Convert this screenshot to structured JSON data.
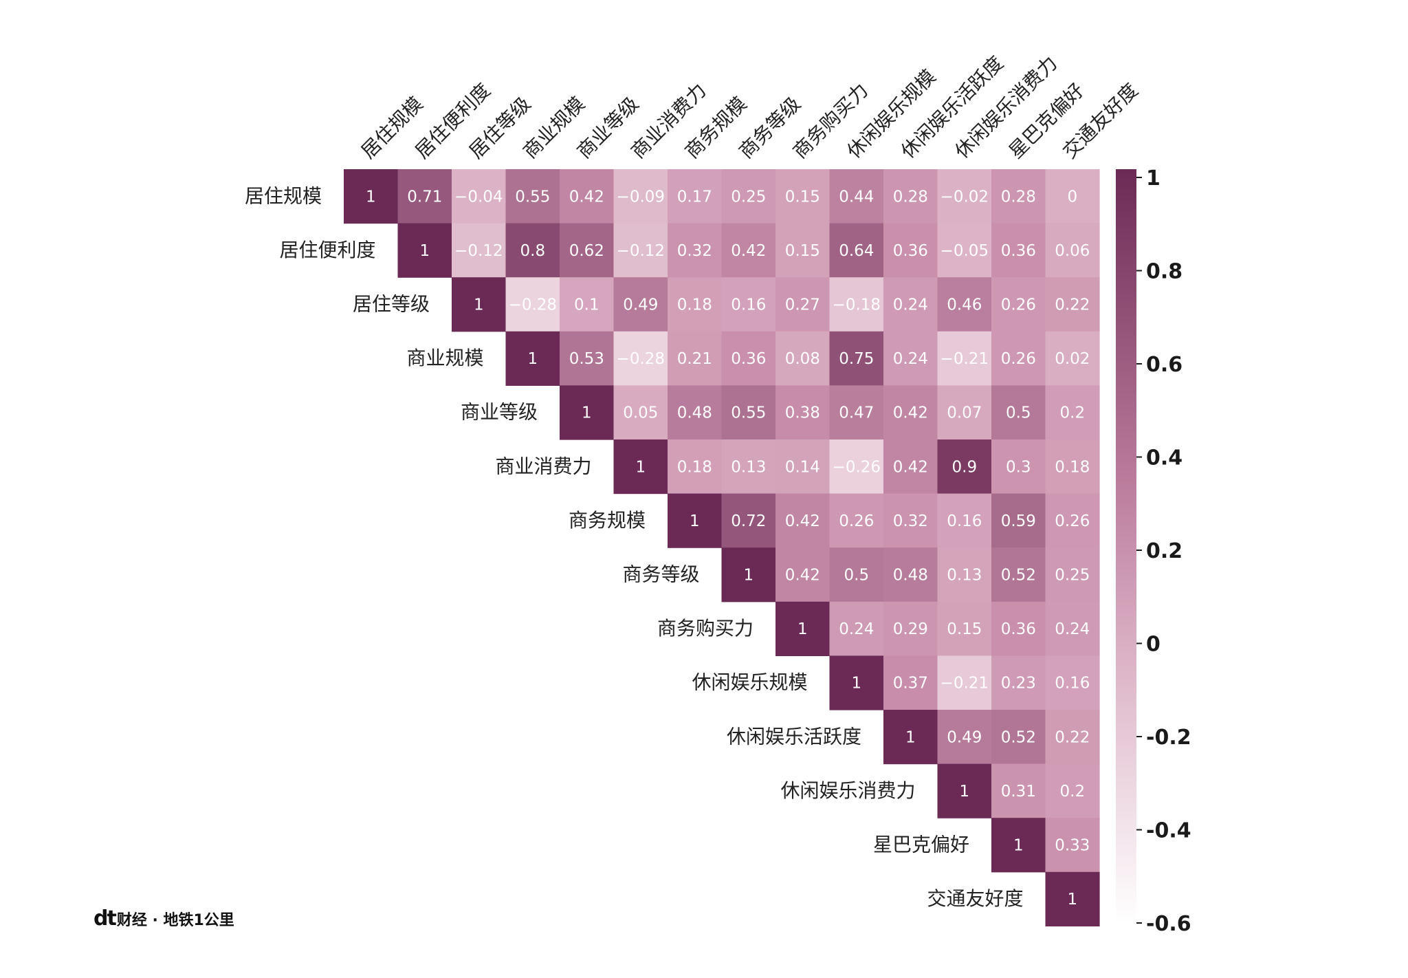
{
  "chart_data": {
    "type": "heatmap",
    "layout": "upper-triangle",
    "labels": [
      "居住规模",
      "居住便利度",
      "居住等级",
      "商业规模",
      "商业等级",
      "商业消费力",
      "商务规模",
      "商务等级",
      "商务购买力",
      "休闲娱乐规模",
      "休闲娱乐活跃度",
      "休闲娱乐消费力",
      "星巴克偏好",
      "交通友好度"
    ],
    "matrix": [
      [
        "1",
        "0.71",
        "−0.04",
        "0.55",
        "0.42",
        "−0.09",
        "0.17",
        "0.25",
        "0.15",
        "0.44",
        "0.28",
        "−0.02",
        "0.28",
        "0"
      ],
      [
        "1",
        "−0.12",
        "0.8",
        "0.62",
        "−0.12",
        "0.32",
        "0.42",
        "0.15",
        "0.64",
        "0.36",
        "−0.05",
        "0.36",
        "0.06"
      ],
      [
        "1",
        "−0.28",
        "0.1",
        "0.49",
        "0.18",
        "0.16",
        "0.27",
        "−0.18",
        "0.24",
        "0.46",
        "0.26",
        "0.22"
      ],
      [
        "1",
        "0.53",
        "−0.28",
        "0.21",
        "0.36",
        "0.08",
        "0.75",
        "0.24",
        "−0.21",
        "0.26",
        "0.02"
      ],
      [
        "1",
        "0.05",
        "0.48",
        "0.55",
        "0.38",
        "0.47",
        "0.42",
        "0.07",
        "0.5",
        "0.2"
      ],
      [
        "1",
        "0.18",
        "0.13",
        "0.14",
        "−0.26",
        "0.42",
        "0.9",
        "0.3",
        "0.18"
      ],
      [
        "1",
        "0.72",
        "0.42",
        "0.26",
        "0.32",
        "0.16",
        "0.59",
        "0.26"
      ],
      [
        "1",
        "0.42",
        "0.5",
        "0.48",
        "0.13",
        "0.52",
        "0.25"
      ],
      [
        "1",
        "0.24",
        "0.29",
        "0.15",
        "0.36",
        "0.24"
      ],
      [
        "1",
        "0.37",
        "−0.21",
        "0.23",
        "0.16"
      ],
      [
        "1",
        "0.49",
        "0.52",
        "0.22"
      ],
      [
        "1",
        "0.31",
        "0.2"
      ],
      [
        "1",
        "0.33"
      ],
      [
        "1"
      ]
    ],
    "colorbar": {
      "range": [
        -0.6,
        1
      ],
      "ticks": [
        "1",
        "0.8",
        "0.6",
        "0.4",
        "0.2",
        "0",
        "-0.2",
        "-0.4",
        "-0.6"
      ],
      "low_color": "#ffffff",
      "mid_color": "#c98fab",
      "high_color": "#6b2a55"
    }
  },
  "footer": {
    "logo_dt": "dt",
    "logo_text": "财经 · 地铁1公里"
  }
}
